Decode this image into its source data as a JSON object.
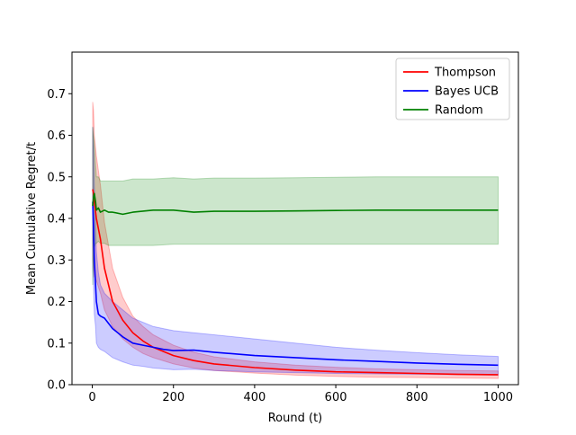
{
  "chart_data": {
    "type": "line",
    "title": "",
    "xlabel": "Round (t)",
    "ylabel": "Mean Cumulative Regret/t",
    "xlim": [
      -50,
      1050
    ],
    "ylim": [
      0.0,
      0.8
    ],
    "xticks": [
      0,
      200,
      400,
      600,
      800,
      1000
    ],
    "yticks": [
      0.0,
      0.1,
      0.2,
      0.3,
      0.4,
      0.5,
      0.6,
      0.7
    ],
    "grid": false,
    "legend_position": "top-right",
    "series": [
      {
        "name": "Thompson",
        "color": "#ff0000",
        "band_color": "#ff0000",
        "x": [
          1,
          3,
          5,
          10,
          20,
          30,
          50,
          75,
          100,
          125,
          150,
          200,
          250,
          300,
          400,
          500,
          600,
          700,
          800,
          900,
          1000
        ],
        "y": [
          0.47,
          0.46,
          0.44,
          0.4,
          0.35,
          0.28,
          0.2,
          0.155,
          0.125,
          0.105,
          0.09,
          0.07,
          0.058,
          0.05,
          0.041,
          0.035,
          0.031,
          0.029,
          0.027,
          0.025,
          0.024
        ],
        "lower": [
          0.3,
          0.28,
          0.26,
          0.25,
          0.22,
          0.18,
          0.14,
          0.11,
          0.09,
          0.075,
          0.065,
          0.05,
          0.04,
          0.034,
          0.028,
          0.023,
          0.02,
          0.018,
          0.017,
          0.016,
          0.015
        ],
        "upper": [
          0.68,
          0.66,
          0.6,
          0.55,
          0.48,
          0.39,
          0.28,
          0.21,
          0.165,
          0.14,
          0.12,
          0.095,
          0.078,
          0.067,
          0.055,
          0.047,
          0.042,
          0.038,
          0.036,
          0.034,
          0.033
        ]
      },
      {
        "name": "Bayes UCB",
        "color": "#0000ff",
        "band_color": "#0000ff",
        "x": [
          1,
          3,
          5,
          8,
          10,
          15,
          20,
          30,
          50,
          75,
          100,
          125,
          150,
          175,
          200,
          250,
          300,
          400,
          500,
          600,
          700,
          800,
          900,
          1000
        ],
        "y": [
          0.44,
          0.38,
          0.3,
          0.24,
          0.2,
          0.17,
          0.165,
          0.16,
          0.135,
          0.115,
          0.1,
          0.095,
          0.09,
          0.085,
          0.082,
          0.083,
          0.078,
          0.07,
          0.065,
          0.06,
          0.056,
          0.052,
          0.049,
          0.047
        ],
        "lower": [
          0.28,
          0.24,
          0.17,
          0.14,
          0.1,
          0.09,
          0.085,
          0.08,
          0.065,
          0.055,
          0.047,
          0.044,
          0.04,
          0.038,
          0.036,
          0.037,
          0.034,
          0.031,
          0.029,
          0.027,
          0.026,
          0.025,
          0.024,
          0.023
        ],
        "upper": [
          0.62,
          0.57,
          0.48,
          0.38,
          0.32,
          0.27,
          0.24,
          0.22,
          0.2,
          0.18,
          0.16,
          0.15,
          0.14,
          0.135,
          0.13,
          0.125,
          0.12,
          0.11,
          0.1,
          0.09,
          0.083,
          0.077,
          0.072,
          0.068
        ]
      },
      {
        "name": "Random",
        "color": "#008000",
        "band_color": "#008000",
        "x": [
          1,
          3,
          5,
          8,
          10,
          15,
          20,
          30,
          40,
          50,
          75,
          100,
          150,
          200,
          250,
          300,
          400,
          500,
          600,
          700,
          800,
          900,
          1000
        ],
        "y": [
          0.43,
          0.45,
          0.46,
          0.44,
          0.42,
          0.425,
          0.415,
          0.42,
          0.415,
          0.415,
          0.41,
          0.415,
          0.42,
          0.42,
          0.415,
          0.417,
          0.417,
          0.418,
          0.419,
          0.42,
          0.42,
          0.42,
          0.42
        ],
        "lower": [
          0.24,
          0.3,
          0.33,
          0.34,
          0.34,
          0.345,
          0.34,
          0.34,
          0.335,
          0.335,
          0.335,
          0.335,
          0.335,
          0.338,
          0.338,
          0.338,
          0.338,
          0.338,
          0.338,
          0.338,
          0.338,
          0.338,
          0.338
        ],
        "upper": [
          0.62,
          0.6,
          0.58,
          0.53,
          0.5,
          0.5,
          0.49,
          0.49,
          0.49,
          0.49,
          0.49,
          0.495,
          0.495,
          0.498,
          0.495,
          0.497,
          0.497,
          0.498,
          0.499,
          0.5,
          0.5,
          0.5,
          0.5
        ]
      }
    ]
  }
}
